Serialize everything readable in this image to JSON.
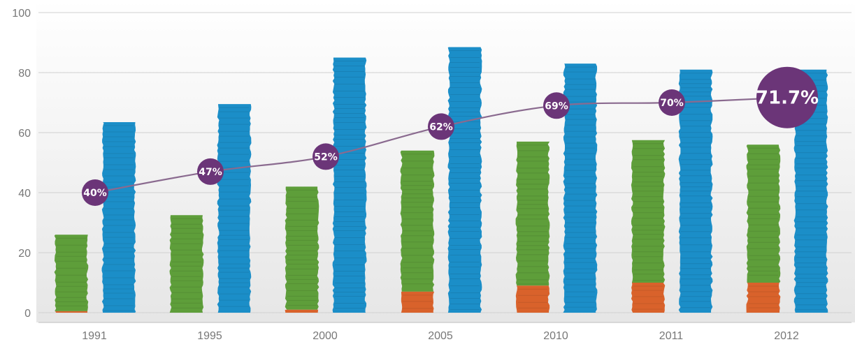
{
  "chart_data": {
    "type": "bar",
    "categories": [
      "1991",
      "1995",
      "2000",
      "2005",
      "2010",
      "2011",
      "2012"
    ],
    "ylim": [
      0,
      100
    ],
    "yticks": [
      0,
      20,
      40,
      60,
      80,
      100
    ],
    "grid": true,
    "series": [
      {
        "kind": "stacked-bottom",
        "color": "#d9622b",
        "values": [
          0.5,
          0,
          1,
          7,
          9,
          10,
          10
        ]
      },
      {
        "kind": "stacked-top",
        "color": "#5e9e3a",
        "values": [
          25.5,
          32.5,
          41,
          47,
          48,
          47.5,
          46
        ]
      },
      {
        "kind": "bar",
        "color": "#1b8ec8",
        "values": [
          63.5,
          69.5,
          85,
          88.5,
          83,
          81,
          81
        ]
      },
      {
        "kind": "line",
        "color": "#8a6a8f",
        "values": [
          40,
          47,
          52,
          62,
          69,
          70,
          71.7
        ],
        "labels": [
          "40%",
          "47%",
          "52%",
          "62%",
          "69%",
          "70%",
          "71.7%"
        ]
      }
    ],
    "bubble_color": "#6b3578"
  }
}
